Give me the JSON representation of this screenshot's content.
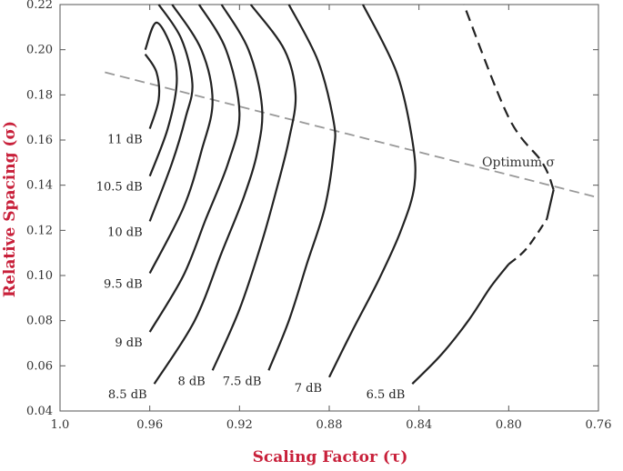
{
  "chart_data": {
    "type": "line",
    "title": "",
    "xlabel": "Scaling Factor (τ)",
    "ylabel": "Relative Spacing (σ)",
    "xlim": [
      1.0,
      0.76
    ],
    "ylim": [
      0.04,
      0.22
    ],
    "x_reversed": true,
    "grid": false,
    "x_ticks": [
      "1.0",
      "0.96",
      "0.92",
      "0.88",
      "0.84",
      "0.80",
      "0.76"
    ],
    "y_ticks": [
      "0.04",
      "0.06",
      "0.08",
      "0.10",
      "0.12",
      "0.14",
      "0.16",
      "0.18",
      "0.20",
      "0.22"
    ],
    "contour_color": "#222222",
    "optimum_color": "#999999",
    "annotation": "Optimum σ",
    "optimum_line": {
      "x": [
        0.98,
        0.762
      ],
      "y": [
        0.19,
        0.135
      ]
    },
    "series": [
      {
        "label": "11 dB",
        "x": [
          0.96,
          0.957,
          0.956,
          0.956,
          0.958,
          0.96
        ],
        "y": [
          0.17,
          0.18,
          0.19,
          0.165,
          0.195,
          0.175
        ]
      },
      {
        "label": "10.5 dB",
        "x": [
          0.96,
          0.952,
          0.948,
          0.95,
          0.957,
          0.962
        ],
        "y": [
          0.144,
          0.165,
          0.185,
          0.2,
          0.212,
          0.2
        ]
      },
      {
        "label": "10 dB",
        "x": [
          0.96,
          0.95,
          0.944,
          0.941,
          0.946,
          0.956
        ],
        "y": [
          0.124,
          0.15,
          0.17,
          0.185,
          0.205,
          0.22
        ]
      },
      {
        "label": "9.5 dB",
        "x": [
          0.96,
          0.945,
          0.937,
          0.932,
          0.937,
          0.95
        ],
        "y": [
          0.101,
          0.13,
          0.155,
          0.177,
          0.2,
          0.22
        ]
      },
      {
        "label": "9 dB",
        "x": [
          0.96,
          0.945,
          0.935,
          0.925,
          0.92,
          0.926,
          0.938
        ],
        "y": [
          0.075,
          0.1,
          0.125,
          0.15,
          0.172,
          0.2,
          0.22
        ]
      },
      {
        "label": "8.5 dB",
        "x": [
          0.958,
          0.94,
          0.928,
          0.918,
          0.912,
          0.91,
          0.916,
          0.928
        ],
        "y": [
          0.052,
          0.08,
          0.11,
          0.135,
          0.155,
          0.175,
          0.2,
          0.22
        ]
      },
      {
        "label": "8 dB",
        "x": [
          0.932,
          0.92,
          0.91,
          0.903,
          0.898,
          0.895,
          0.9,
          0.915
        ],
        "y": [
          0.058,
          0.085,
          0.115,
          0.14,
          0.16,
          0.18,
          0.2,
          0.22
        ]
      },
      {
        "label": "7.5 dB",
        "x": [
          0.907,
          0.898,
          0.89,
          0.882,
          0.878,
          0.878,
          0.885,
          0.898
        ],
        "y": [
          0.058,
          0.08,
          0.105,
          0.13,
          0.155,
          0.168,
          0.195,
          0.22
        ]
      },
      {
        "label": "7 dB",
        "x": [
          0.88,
          0.87,
          0.858,
          0.848,
          0.842,
          0.843,
          0.85,
          0.865
        ],
        "y": [
          0.055,
          0.075,
          0.098,
          0.12,
          0.14,
          0.16,
          0.19,
          0.22
        ]
      },
      {
        "label": "6.5 dB",
        "x": [
          0.843,
          0.83,
          0.818,
          0.808,
          0.8,
          0.792,
          0.783,
          0.78,
          0.785,
          0.8,
          0.82
        ],
        "y": [
          0.052,
          0.065,
          0.08,
          0.095,
          0.105,
          0.112,
          0.125,
          0.138,
          0.15,
          0.17,
          0.22
        ]
      }
    ]
  }
}
